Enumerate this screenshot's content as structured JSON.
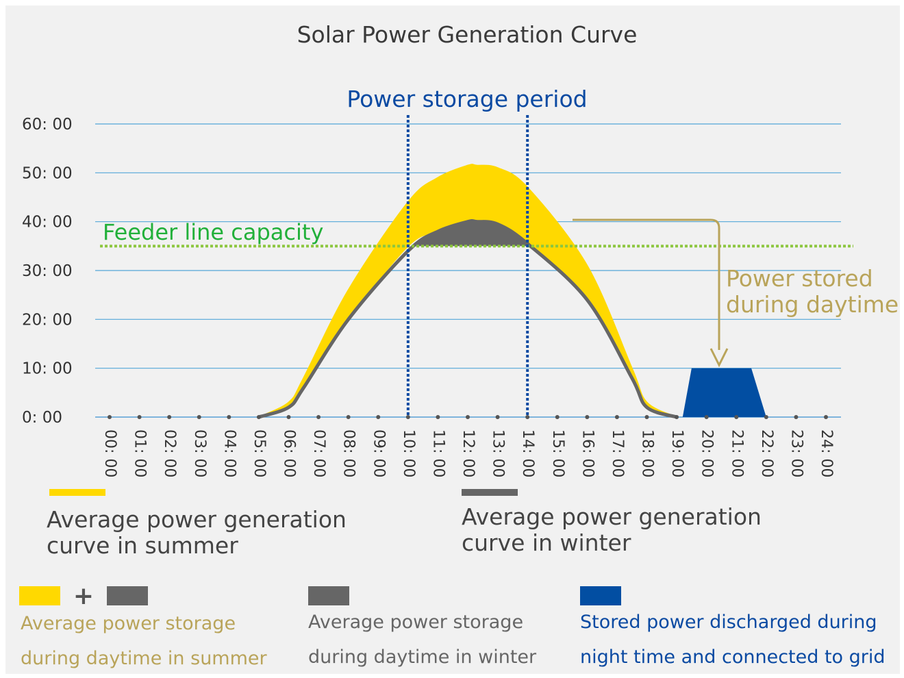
{
  "chart_data": {
    "type": "area",
    "title": "Solar Power Generation Curve",
    "y_ticks": [
      "0: 00",
      "10: 00",
      "20: 00",
      "30: 00",
      "40: 00",
      "50: 00",
      "60: 00"
    ],
    "ylim": [
      0,
      60
    ],
    "x_ticks": [
      "00: 00",
      "01: 00",
      "02: 00",
      "03: 00",
      "04: 00",
      "05: 00",
      "06: 00",
      "07: 00",
      "08: 00",
      "09: 00",
      "10: 00",
      "11: 00",
      "12: 00",
      "13: 00",
      "14: 00",
      "15: 00",
      "16: 00",
      "17: 00",
      "18: 00",
      "19: 00",
      "20: 00",
      "21: 00",
      "22: 00",
      "23: 00",
      "24: 00"
    ],
    "xlim": [
      0,
      24
    ],
    "grid": true,
    "series": [
      {
        "name": "Average power generation curve in summer",
        "color": "#ffd900",
        "x": [
          5,
          6,
          6.5,
          8,
          10,
          11,
          12,
          12.3,
          13,
          14,
          16,
          17.5,
          18,
          19
        ],
        "upper": [
          0,
          3,
          8,
          26,
          44,
          49,
          51.5,
          51.5,
          51,
          47,
          31,
          10,
          3,
          0
        ],
        "lower": [
          0,
          2,
          6,
          20,
          35,
          38,
          40,
          40,
          39.5,
          35.5,
          24,
          8,
          2,
          0
        ]
      },
      {
        "name": "Average power generation curve in winter",
        "color": "#666666",
        "x": [
          5,
          6,
          6.5,
          8,
          10,
          11,
          12,
          12.3,
          13,
          14,
          16,
          17.5,
          18,
          19
        ],
        "values": [
          0,
          2,
          6,
          20,
          34,
          38,
          40,
          40,
          39.5,
          35.5,
          24,
          8,
          2,
          0
        ]
      },
      {
        "name": "Stored power discharged during night time and connected to grid",
        "color": "#024ea2",
        "x": [
          19.2,
          19.5,
          21.5,
          22
        ],
        "values": [
          0,
          10,
          10,
          0
        ]
      }
    ],
    "feeder_capacity": {
      "label": "Feeder line capacity",
      "value": 35,
      "color": "#8cc63f"
    },
    "storage_period": {
      "label": "Power storage period",
      "start": 10,
      "end": 14,
      "color": "#0b4aa2"
    },
    "annotation": {
      "text_line1": "Power stored",
      "text_line2": "during daytime",
      "color": "#b9a45a"
    },
    "legend": {
      "summer_curve": {
        "line1": "Average power generation",
        "line2": "curve in summer",
        "color": "#ffd900"
      },
      "winter_curve": {
        "line1": "Average power generation",
        "line2": "curve in winter",
        "color": "#666666"
      },
      "summer_storage": {
        "line1": "Average power storage",
        "line2": "during daytime in summer",
        "plus": "+",
        "color": "#b9a45a"
      },
      "winter_storage": {
        "line1": "Average power storage",
        "line2": "during daytime in winter",
        "color": "#666666"
      },
      "discharge": {
        "line1": "Stored power discharged during",
        "line2": "night time and connected to grid",
        "color": "#0b4aa2"
      }
    }
  }
}
